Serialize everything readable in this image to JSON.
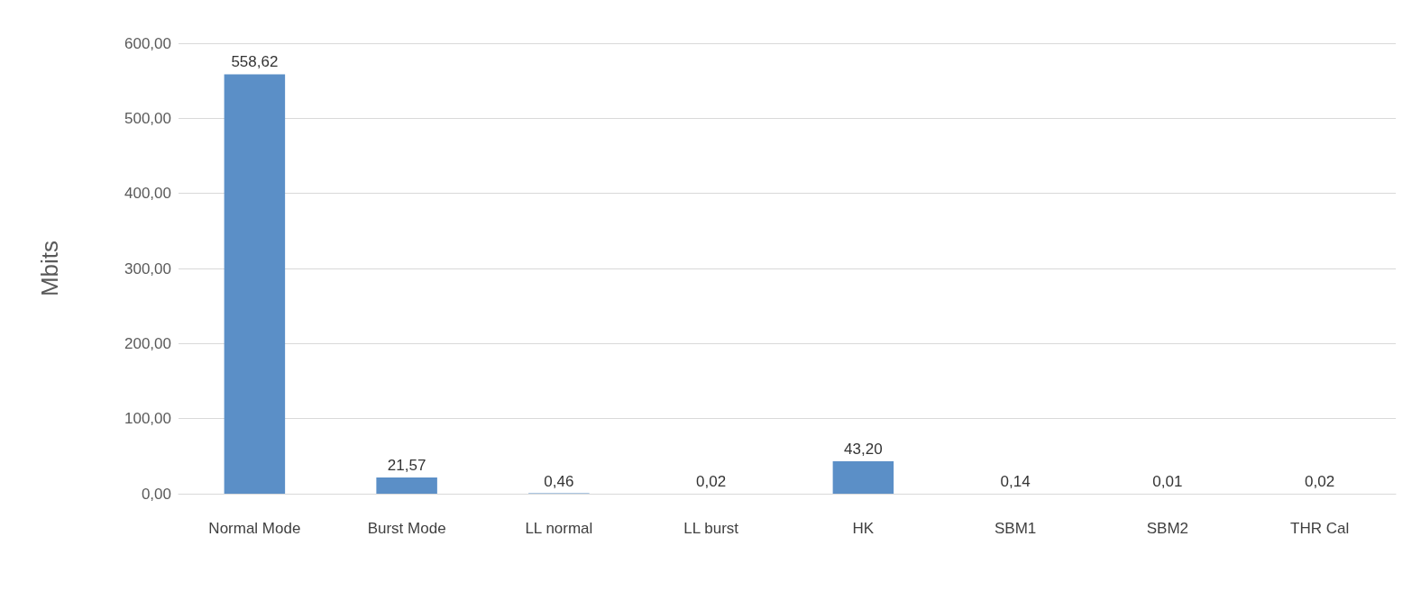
{
  "chart_data": {
    "type": "bar",
    "ylabel": "Mbits",
    "categories": [
      "Normal Mode",
      "Burst Mode",
      "LL normal",
      "LL burst",
      "HK",
      "SBM1",
      "SBM2",
      "THR Cal"
    ],
    "values": [
      558.62,
      21.57,
      0.46,
      0.02,
      43.2,
      0.14,
      0.01,
      0.02
    ],
    "value_labels": [
      "558,62",
      "21,57",
      "0,46",
      "0,02",
      "43,20",
      "0,14",
      "0,01",
      "0,02"
    ],
    "color": "#5b8fc7",
    "ylim": [
      0,
      600
    ],
    "yticks": [
      {
        "value": 0,
        "label": "0,00"
      },
      {
        "value": 100,
        "label": "100,00"
      },
      {
        "value": 200,
        "label": "200,00"
      },
      {
        "value": 300,
        "label": "300,00"
      },
      {
        "value": 400,
        "label": "400,00"
      },
      {
        "value": 500,
        "label": "500,00"
      },
      {
        "value": 600,
        "label": "600,00"
      }
    ],
    "grid": "y"
  }
}
